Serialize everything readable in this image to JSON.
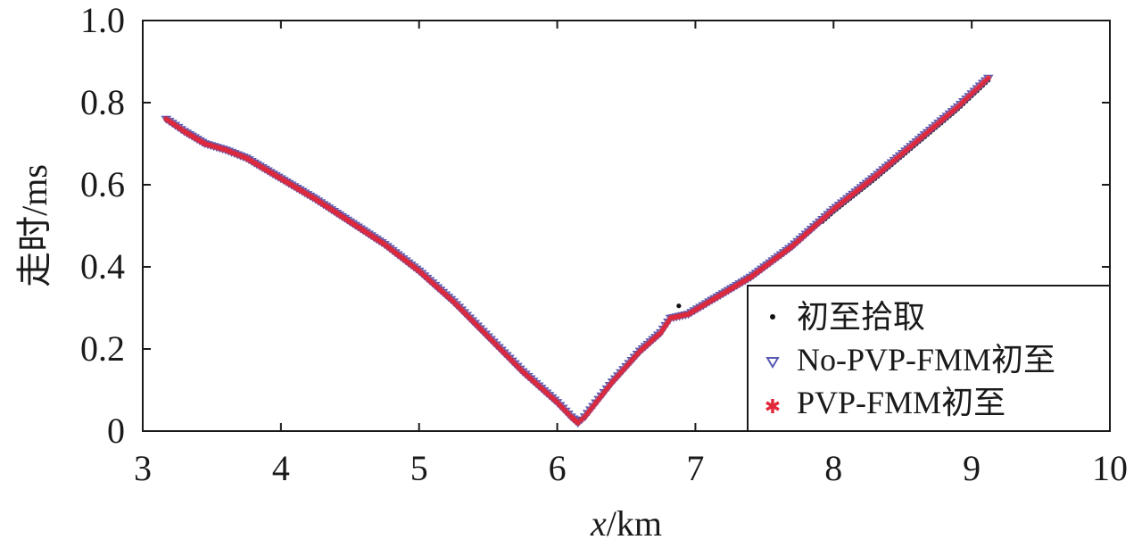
{
  "chart_data": {
    "type": "scatter",
    "xlabel": {
      "var": "x",
      "unit": "/km"
    },
    "ylabel": "走时/ms",
    "xlim": [
      3,
      10
    ],
    "ylim": [
      0,
      1.0
    ],
    "x_ticks": [
      "3",
      "4",
      "5",
      "6",
      "7",
      "8",
      "9",
      "10"
    ],
    "y_ticks": [
      "0",
      "0.2",
      "0.4",
      "0.6",
      "0.8",
      "1.0"
    ],
    "legend_position": "bottom-right",
    "grid": false,
    "series_style": [
      {
        "marker": "dot",
        "color": "#111111"
      },
      {
        "marker": "triangle-down",
        "color": "#5a5ab4"
      },
      {
        "marker": "star",
        "color": "#e0283a"
      }
    ],
    "series": [
      {
        "name": "初至拾取"
      },
      {
        "name": "No-PVP-FMM初至"
      },
      {
        "name": "PVP-FMM初至"
      }
    ],
    "curve_points": [
      [
        3.17,
        0.76
      ],
      [
        3.3,
        0.73
      ],
      [
        3.45,
        0.7
      ],
      [
        3.6,
        0.685
      ],
      [
        3.75,
        0.665
      ],
      [
        4.0,
        0.615
      ],
      [
        4.25,
        0.565
      ],
      [
        4.5,
        0.51
      ],
      [
        4.75,
        0.455
      ],
      [
        5.0,
        0.39
      ],
      [
        5.25,
        0.315
      ],
      [
        5.5,
        0.23
      ],
      [
        5.75,
        0.145
      ],
      [
        6.0,
        0.07
      ],
      [
        6.1,
        0.035
      ],
      [
        6.15,
        0.02
      ],
      [
        6.2,
        0.035
      ],
      [
        6.4,
        0.12
      ],
      [
        6.6,
        0.195
      ],
      [
        6.75,
        0.24
      ],
      [
        6.82,
        0.275
      ],
      [
        6.95,
        0.285
      ],
      [
        7.1,
        0.315
      ],
      [
        7.4,
        0.375
      ],
      [
        7.7,
        0.45
      ],
      [
        8.0,
        0.54
      ],
      [
        8.3,
        0.62
      ],
      [
        8.6,
        0.705
      ],
      [
        8.9,
        0.79
      ],
      [
        9.12,
        0.86
      ]
    ],
    "pick_outlier": [
      6.88,
      0.305
    ]
  }
}
